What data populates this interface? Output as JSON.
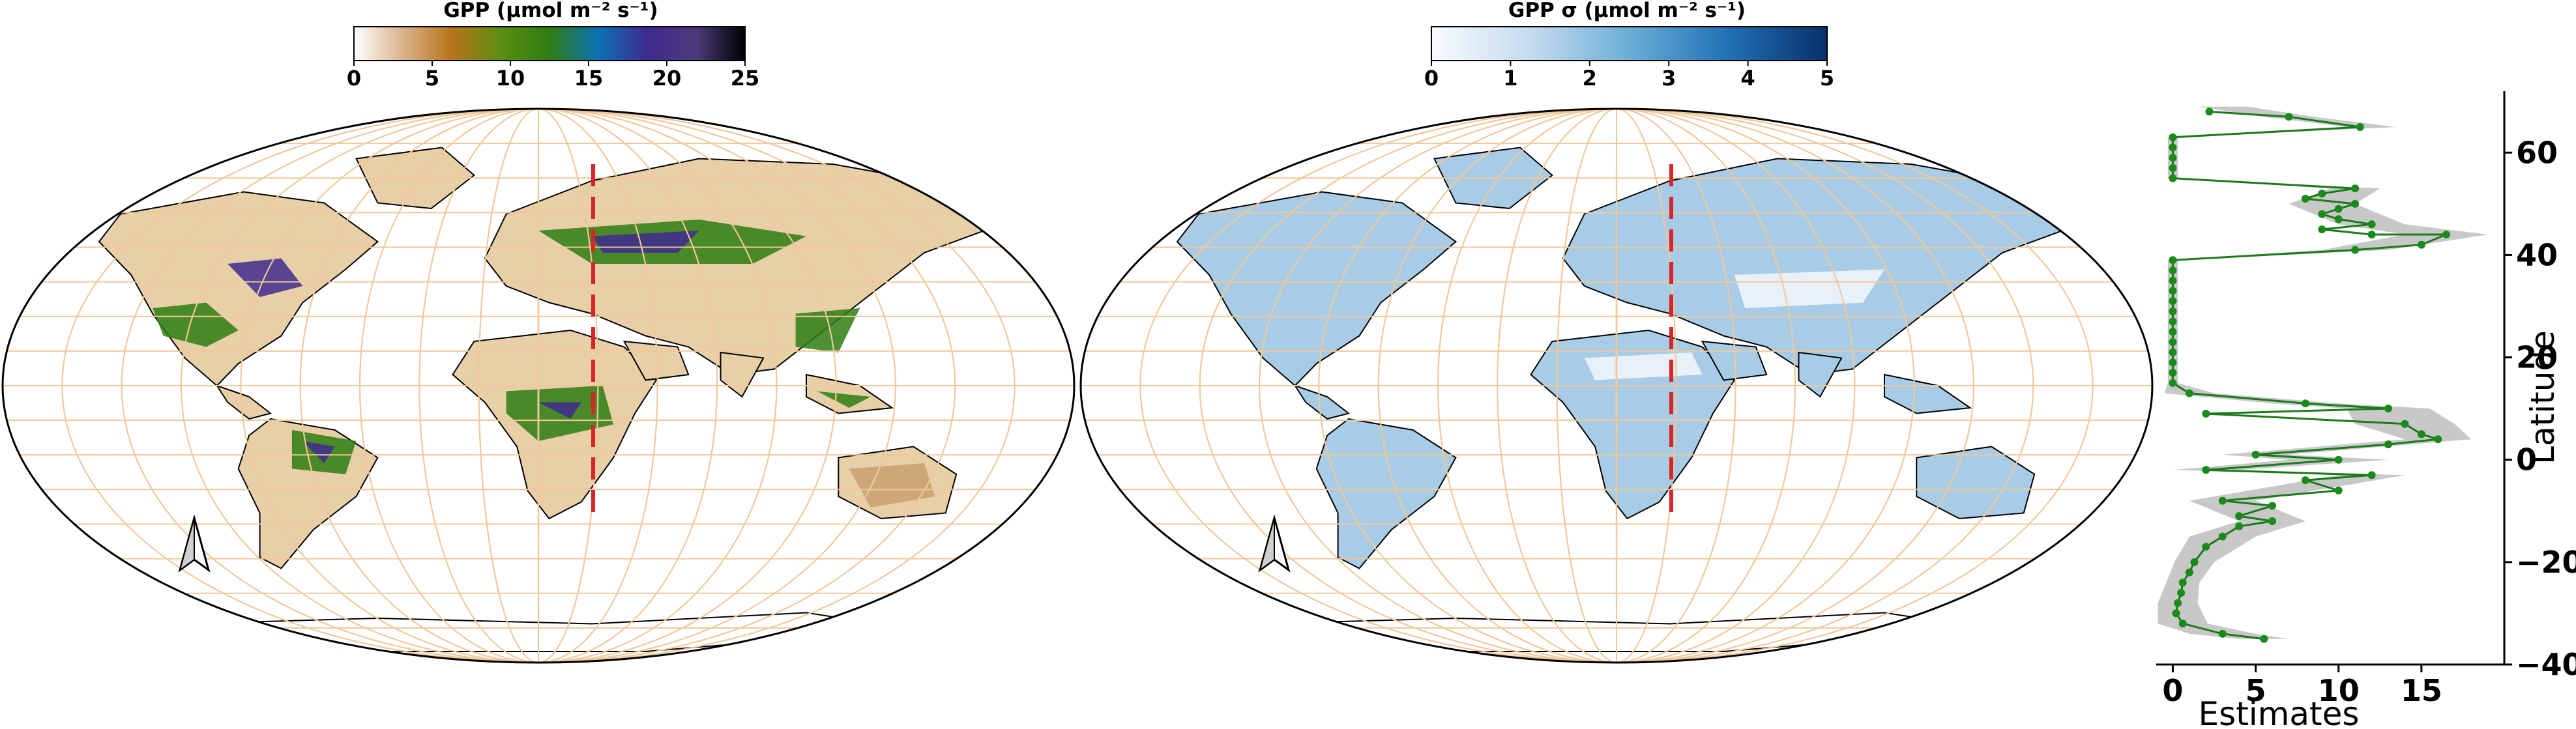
{
  "panel_left": {
    "colorbar_title": "GPP (μmol m⁻² s⁻¹)",
    "colorbar_ticks": [
      "0",
      "5",
      "10",
      "15",
      "20",
      "25"
    ],
    "colorbar_range": [
      0,
      25
    ],
    "colormap": [
      "#ffffff",
      "#d9b38c",
      "#b8741a",
      "#5a8f12",
      "#2e7d12",
      "#0b72b5",
      "#3f2a8f",
      "#4a3b7a",
      "#000000"
    ]
  },
  "panel_middle": {
    "colorbar_title": "GPP σ (μmol m⁻² s⁻¹)",
    "colorbar_ticks": [
      "0",
      "1",
      "2",
      "3",
      "4",
      "5"
    ],
    "colorbar_range": [
      0,
      5
    ],
    "colormap": [
      "#f7fbff",
      "#c6dbef",
      "#6baed6",
      "#2171b5",
      "#08306b"
    ]
  },
  "colors": {
    "graticule": "#f0c89a",
    "transect": "#d62728",
    "profile_line": "#1a7a1a",
    "profile_point": "#1a8a1a",
    "uncertainty_band": "#c8c8c8",
    "land_left": "#e8cfa8",
    "land_middle": "#a9cce6"
  },
  "icons": {
    "north_arrow": "north-arrow-icon"
  },
  "chart_data": {
    "type": "line",
    "orientation": "vertical-profile",
    "xlabel": "Estimates",
    "ylabel": "Latitude",
    "xlim": [
      -1,
      20
    ],
    "ylim": [
      -40,
      72
    ],
    "x_ticks": [
      "0",
      "5",
      "10",
      "15"
    ],
    "y_ticks": [
      "−40",
      "−20",
      "0",
      "20",
      "40",
      "60"
    ],
    "x_tick_values": [
      0,
      5,
      10,
      15
    ],
    "y_tick_values": [
      -40,
      -20,
      0,
      20,
      40,
      60
    ],
    "series": [
      {
        "points": [
          [
            2.2,
            68
          ],
          [
            7,
            67
          ],
          [
            11.3,
            65
          ],
          [
            0,
            63
          ],
          [
            0,
            61
          ],
          [
            0,
            59
          ],
          [
            0,
            57
          ],
          [
            0,
            55
          ],
          [
            11,
            53
          ],
          [
            9,
            52
          ],
          [
            8,
            51
          ],
          [
            11,
            50
          ],
          [
            10,
            49
          ],
          [
            9,
            48
          ],
          [
            10,
            47
          ],
          [
            12,
            46
          ],
          [
            9,
            45
          ],
          [
            12,
            44
          ],
          [
            16.5,
            44
          ],
          [
            15,
            42
          ],
          [
            11,
            41
          ],
          [
            0,
            39
          ],
          [
            0,
            37
          ],
          [
            0,
            35
          ],
          [
            0,
            33
          ],
          [
            0,
            31
          ],
          [
            0,
            29
          ],
          [
            0,
            27
          ],
          [
            0,
            25
          ],
          [
            0,
            23
          ],
          [
            0,
            21
          ],
          [
            0,
            19
          ],
          [
            0,
            17
          ],
          [
            0,
            15
          ],
          [
            1,
            13
          ],
          [
            8,
            11
          ],
          [
            13,
            10
          ],
          [
            2,
            9
          ],
          [
            14,
            7
          ],
          [
            15,
            5
          ],
          [
            16,
            4
          ],
          [
            13,
            3
          ],
          [
            5,
            1
          ],
          [
            10,
            0
          ],
          [
            2,
            -2
          ],
          [
            12,
            -3
          ],
          [
            8,
            -4
          ],
          [
            10,
            -6
          ],
          [
            3,
            -8
          ],
          [
            6,
            -9
          ],
          [
            4,
            -11
          ],
          [
            6,
            -12
          ],
          [
            4,
            -13
          ],
          [
            3,
            -15
          ],
          [
            2,
            -17
          ],
          [
            1.3,
            -20
          ],
          [
            1,
            -22
          ],
          [
            0.6,
            -24
          ],
          [
            0.5,
            -26
          ],
          [
            0.3,
            -28
          ],
          [
            0.2,
            -30
          ],
          [
            0.6,
            -32
          ],
          [
            3,
            -34
          ],
          [
            5.5,
            -35
          ]
        ],
        "band": [
          [
            3,
            69,
            1.5
          ],
          [
            7,
            67,
            1.5
          ],
          [
            12,
            65,
            1.5
          ],
          [
            0,
            63,
            0.3
          ],
          [
            0,
            55,
            0.3
          ],
          [
            11,
            53,
            1.5
          ],
          [
            9,
            50,
            2
          ],
          [
            12,
            46,
            2
          ],
          [
            16.5,
            44,
            2.5
          ],
          [
            11,
            41,
            2
          ],
          [
            0,
            39,
            0.3
          ],
          [
            0,
            15,
            0.3
          ],
          [
            1,
            13,
            1.5
          ],
          [
            8,
            11,
            2
          ],
          [
            13,
            10,
            2.5
          ],
          [
            14,
            7,
            3
          ],
          [
            16,
            4,
            2
          ],
          [
            5,
            1,
            2
          ],
          [
            10,
            0,
            3
          ],
          [
            2,
            -2,
            2
          ],
          [
            12,
            -3,
            2
          ],
          [
            3,
            -8,
            2
          ],
          [
            6,
            -12,
            2
          ],
          [
            3,
            -15,
            2
          ],
          [
            1.3,
            -20,
            1.2
          ],
          [
            0.6,
            -24,
            1
          ],
          [
            0.3,
            -28,
            1.2
          ],
          [
            0.6,
            -32,
            1.5
          ],
          [
            3,
            -34,
            2
          ],
          [
            5.5,
            -35,
            1.5
          ]
        ]
      }
    ]
  }
}
